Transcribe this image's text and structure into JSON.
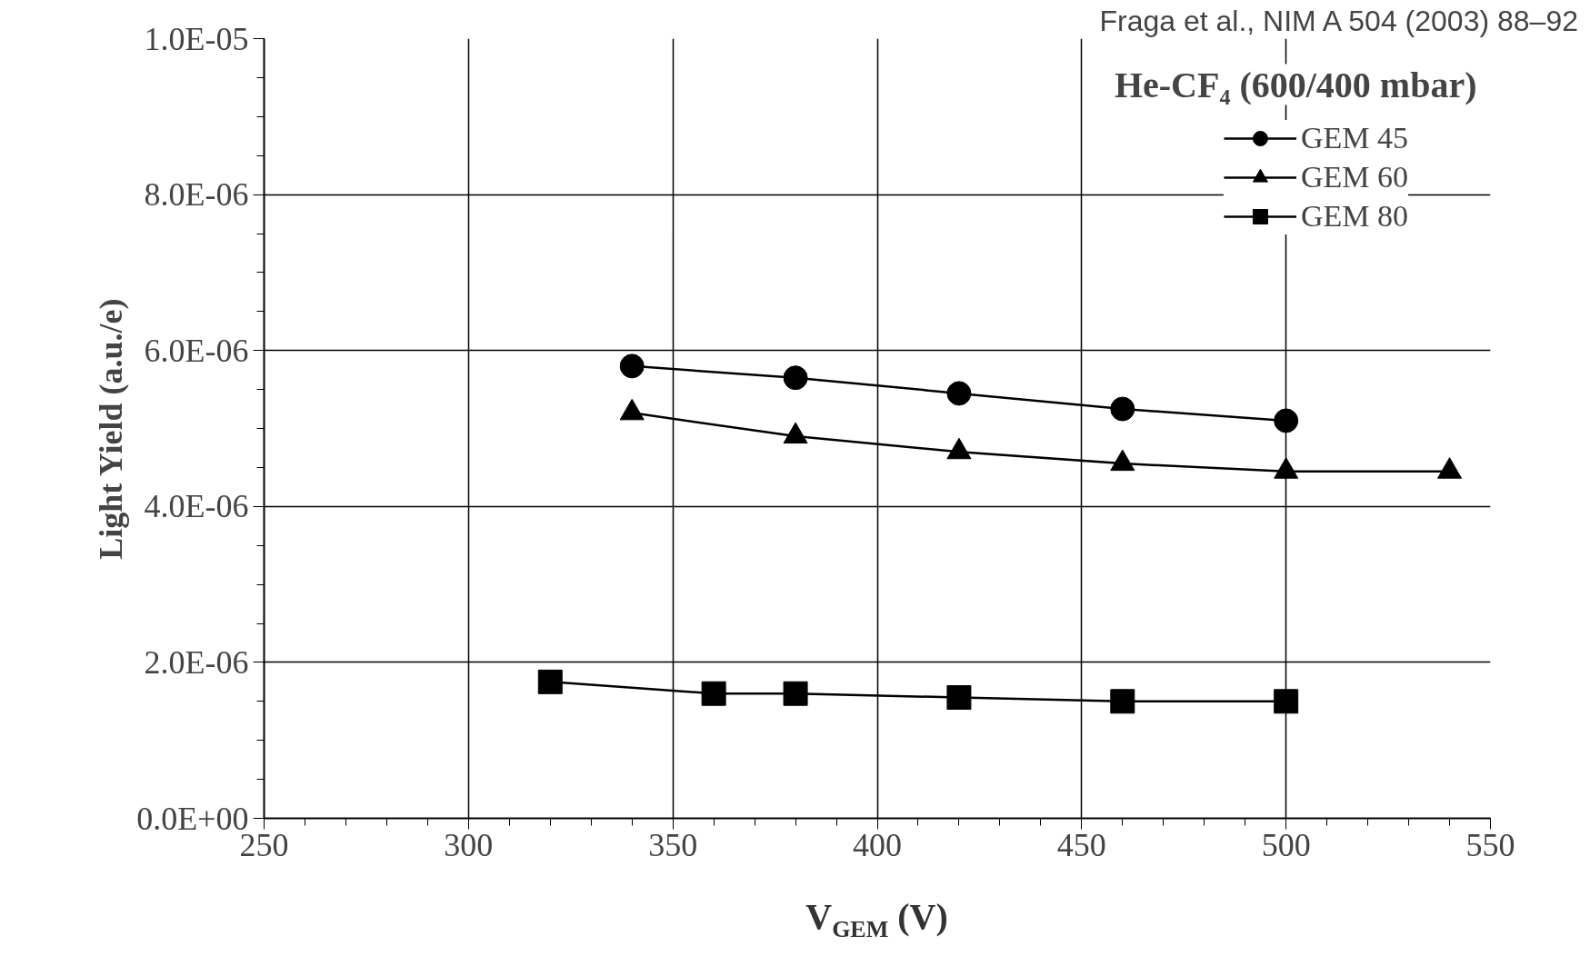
{
  "chart_data": {
    "type": "line",
    "xlabel": "V$_{GEM}$ (V)",
    "ylabel": "Light Yield (a.u./e)",
    "annotations": [
      "Fraga et al., NIM A 504 (2003) 88–92",
      "He-CF₄ (600/400 mbar)"
    ],
    "series": [
      {
        "name": "GEM 45",
        "color": "#000000",
        "marker": "circle",
        "x": [
          340,
          380,
          420,
          460,
          500
        ],
        "values": [
          5.8e-06,
          5.65e-06,
          5.45e-06,
          5.25e-06,
          5.1e-06
        ]
      },
      {
        "name": "GEM 60",
        "color": "#000000",
        "marker": "triangle",
        "x": [
          340,
          380,
          420,
          460,
          500,
          540
        ],
        "values": [
          5.2e-06,
          4.9e-06,
          4.7e-06,
          4.55e-06,
          4.45e-06,
          4.45e-06
        ]
      },
      {
        "name": "GEM 80",
        "color": "#000000",
        "marker": "square",
        "x": [
          320,
          360,
          380,
          420,
          460,
          500
        ],
        "values": [
          1.75e-06,
          1.6e-06,
          1.6e-06,
          1.55e-06,
          1.5e-06,
          1.5e-06
        ]
      }
    ],
    "xlim": [
      250,
      550
    ],
    "xticks": [
      250,
      300,
      350,
      400,
      450,
      500,
      550
    ],
    "ylim": [
      0,
      1e-05
    ],
    "yticks": [
      {
        "value": 0,
        "label": "0.0E+00"
      },
      {
        "value": 2e-06,
        "label": "2.0E-06"
      },
      {
        "value": 4e-06,
        "label": "4.0E-06"
      },
      {
        "value": 6e-06,
        "label": "6.0E-06"
      },
      {
        "value": 8e-06,
        "label": "8.0E-06"
      },
      {
        "value": 1e-05,
        "label": "1.0E-05"
      }
    ],
    "grid": true,
    "legend": "top right",
    "line_style": "solid"
  }
}
